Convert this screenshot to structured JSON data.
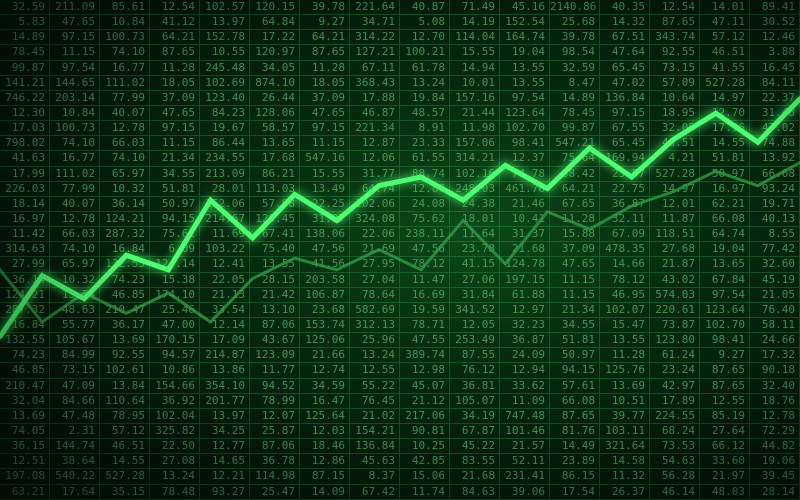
{
  "chart_data": {
    "type": "line",
    "title": "",
    "xlabel": "",
    "ylabel": "",
    "x": [
      0,
      1,
      2,
      3,
      4,
      5,
      6,
      7,
      8,
      9,
      10,
      11,
      12,
      13,
      14,
      15,
      16,
      17,
      18,
      19
    ],
    "xlim": [
      0,
      19
    ],
    "ylim": [
      0,
      100
    ],
    "grid": true,
    "legend": "none",
    "series": [
      {
        "values": [
          15,
          36,
          28,
          43,
          38,
          62,
          49,
          64,
          55,
          67,
          70,
          62,
          74,
          66,
          80,
          70,
          83,
          92,
          82,
          97
        ],
        "color": "#4dff70",
        "glow": true
      },
      {
        "values": [
          38,
          20,
          30,
          23,
          30,
          20,
          35,
          42,
          38,
          45,
          38,
          55,
          40,
          58,
          52,
          60,
          65,
          72,
          67,
          75
        ],
        "color": "#2f9e46",
        "glow": false
      }
    ]
  },
  "table": {
    "rows": [
      [
        "32.59",
        "211.09",
        "85.61",
        "12.54",
        "102.57",
        "120.15",
        "39.78",
        "221.64",
        "40.87",
        "71.49",
        "45.16",
        "2140.86",
        "40.35",
        "12.54",
        "14.01",
        "89.41"
      ],
      [
        "5.83",
        "47.65",
        "10.84",
        "41.12",
        "13.97",
        "64.84",
        "9.27",
        "34.71",
        "5.08",
        "14.19",
        "152.54",
        "25.68",
        "14.32",
        "87.65",
        "47.11",
        "30.52"
      ],
      [
        "14.89",
        "97.15",
        "100.73",
        "64.21",
        "152.78",
        "17.22",
        "64.21",
        "314.22",
        "12.70",
        "114.04",
        "164.74",
        "39.78",
        "67.51",
        "343.74",
        "57.12",
        "12.46"
      ],
      [
        "78.45",
        "11.15",
        "74.10",
        "87.65",
        "10.55",
        "120.97",
        "87.65",
        "127.21",
        "100.21",
        "15.55",
        "19.04",
        "98.54",
        "47.64",
        "92.55",
        "46.51",
        "3.88"
      ],
      [
        "99.87",
        "97.54",
        "16.77",
        "11.28",
        "245.48",
        "34.05",
        "11.28",
        "67.11",
        "61.78",
        "14.94",
        "13.55",
        "32.59",
        "65.45",
        "73.15",
        "41.55",
        "16.45"
      ],
      [
        "141.21",
        "144.65",
        "111.02",
        "18.05",
        "102.69",
        "874.10",
        "18.05",
        "368.43",
        "13.24",
        "10.01",
        "13.55",
        "8.47",
        "47.02",
        "57.09",
        "527.28",
        "84.11"
      ],
      [
        "746.22",
        "203.14",
        "77.99",
        "37.09",
        "123.40",
        "26.44",
        "37.09",
        "17.88",
        "19.84",
        "157.16",
        "97.54",
        "14.89",
        "136.84",
        "10.64",
        "14.97",
        "22.37"
      ],
      [
        "12.30",
        "10.84",
        "40.07",
        "47.65",
        "84.23",
        "128.06",
        "47.65",
        "46.87",
        "48.57",
        "21.44",
        "123.64",
        "78.45",
        "97.15",
        "18.95",
        "12.70",
        "31.48"
      ],
      [
        "17.03",
        "100.73",
        "12.78",
        "97.15",
        "19.67",
        "58.57",
        "97.15",
        "221.34",
        "8.91",
        "11.98",
        "102.70",
        "99.87",
        "67.55",
        "32.05",
        "17.96",
        "47.02"
      ],
      [
        "798.02",
        "74.10",
        "66.03",
        "11.15",
        "86.44",
        "13.65",
        "11.15",
        "12.87",
        "23.33",
        "157.06",
        "98.41",
        "547.21",
        "65.45",
        "46.51",
        "14.55",
        "74.88"
      ],
      [
        "41.63",
        "16.77",
        "74.10",
        "21.34",
        "234.55",
        "17.68",
        "547.16",
        "12.06",
        "61.55",
        "314.21",
        "12.37",
        "75.64",
        "169.94",
        "4.21",
        "51.81",
        "13.92"
      ],
      [
        "17.99",
        "111.02",
        "65.97",
        "34.55",
        "213.09",
        "86.21",
        "15.55",
        "31.77",
        "88.74",
        "102.16",
        "74.78",
        "58.42",
        "23.57",
        "527.28",
        "50.97",
        "66.08"
      ],
      [
        "226.03",
        "77.99",
        "10.32",
        "51.81",
        "28.01",
        "113.03",
        "13.49",
        "64.74",
        "12.87",
        "248.03",
        "461.76",
        "64.21",
        "22.75",
        "14.97",
        "16.97",
        "93.24"
      ],
      [
        "18.14",
        "40.07",
        "36.14",
        "50.97",
        "152.06",
        "57.98",
        "22.25",
        "102.06",
        "24.08",
        "24.38",
        "21.46",
        "67.65",
        "36.87",
        "12.01",
        "62.21",
        "19.71"
      ],
      [
        "16.97",
        "12.78",
        "124.21",
        "94.15",
        "214.67",
        "120.45",
        "31.97",
        "324.08",
        "75.62",
        "18.01",
        "10.41",
        "11.28",
        "32.11",
        "11.87",
        "66.08",
        "40.13"
      ],
      [
        "11.42",
        "66.03",
        "287.32",
        "75.61",
        "11.69",
        "67.41",
        "138.06",
        "22.06",
        "238.11",
        "11.64",
        "31.37",
        "15.88",
        "67.09",
        "118.51",
        "64.74",
        "8.55"
      ],
      [
        "314.63",
        "74.10",
        "16.84",
        "6.09",
        "103.22",
        "75.40",
        "47.56",
        "21.69",
        "47.56",
        "23.78",
        "21.68",
        "37.09",
        "478.35",
        "27.68",
        "19.04",
        "77.42"
      ],
      [
        "27.99",
        "65.97",
        "132.55",
        "124.14",
        "12.41",
        "13.55",
        "41.56",
        "27.95",
        "78.12",
        "41.15",
        "124.78",
        "47.65",
        "14.66",
        "21.87",
        "13.65",
        "32.60"
      ],
      [
        "36.14",
        "10.32",
        "74.23",
        "15.38",
        "22.05",
        "28.15",
        "203.58",
        "27.04",
        "11.47",
        "27.06",
        "197.15",
        "11.15",
        "78.12",
        "43.02",
        "67.84",
        "45.19"
      ],
      [
        "124.21",
        "13.74",
        "46.85",
        "174.10",
        "21.13",
        "21.42",
        "106.87",
        "78.64",
        "16.69",
        "31.84",
        "61.88",
        "11.15",
        "46.95",
        "574.03",
        "97.54",
        "21.05"
      ],
      [
        "287.32",
        "48.63",
        "210.47",
        "25.46",
        "33.54",
        "13.10",
        "23.68",
        "582.69",
        "19.59",
        "341.52",
        "12.97",
        "21.34",
        "102.07",
        "220.61",
        "123.64",
        "76.40"
      ],
      [
        "16.84",
        "55.77",
        "36.17",
        "47.00",
        "12.14",
        "87.06",
        "153.74",
        "312.13",
        "78.71",
        "12.05",
        "32.23",
        "34.55",
        "15.47",
        "73.87",
        "102.70",
        "58.11"
      ],
      [
        "132.55",
        "105.67",
        "13.69",
        "170.15",
        "17.09",
        "43.67",
        "125.06",
        "25.96",
        "47.55",
        "253.49",
        "36.87",
        "51.81",
        "13.55",
        "123.80",
        "98.41",
        "24.66"
      ],
      [
        "74.23",
        "84.99",
        "92.55",
        "94.57",
        "214.87",
        "123.09",
        "21.66",
        "13.24",
        "389.74",
        "87.55",
        "24.09",
        "50.97",
        "11.28",
        "61.24",
        "9.27",
        "17.32"
      ],
      [
        "46.85",
        "73.15",
        "102.61",
        "10.86",
        "13.86",
        "11.77",
        "12.74",
        "12.55",
        "12.98",
        "76.12",
        "12.94",
        "94.15",
        "125.76",
        "23.24",
        "87.65",
        "90.18"
      ],
      [
        "210.47",
        "47.09",
        "13.84",
        "154.66",
        "354.10",
        "94.52",
        "34.59",
        "55.22",
        "45.07",
        "36.81",
        "33.62",
        "57.61",
        "13.69",
        "42.97",
        "87.65",
        "32.40"
      ],
      [
        "32.04",
        "84.66",
        "110.64",
        "36.92",
        "201.77",
        "78.99",
        "16.47",
        "76.45",
        "21.12",
        "105.07",
        "11.09",
        "66.08",
        "10.51",
        "17.89",
        "12.55",
        "18.76"
      ],
      [
        "13.69",
        "47.48",
        "78.95",
        "102.04",
        "13.97",
        "12.07",
        "125.64",
        "21.02",
        "217.06",
        "34.19",
        "747.48",
        "87.65",
        "39.77",
        "224.55",
        "85.19",
        "12.78"
      ],
      [
        "74.05",
        "2.31",
        "57.12",
        "325.82",
        "34.25",
        "25.87",
        "12.03",
        "154.21",
        "90.81",
        "67.87",
        "101.46",
        "81.76",
        "103.11",
        "68.24",
        "27.64",
        "72.29"
      ],
      [
        "36.15",
        "144.74",
        "46.51",
        "22.50",
        "12.77",
        "87.06",
        "18.46",
        "136.84",
        "10.25",
        "45.22",
        "21.57",
        "14.49",
        "321.64",
        "73.53",
        "66.12",
        "44.82"
      ],
      [
        "12.51",
        "38.64",
        "14.55",
        "27.08",
        "14.65",
        "36.78",
        "12.86",
        "45.63",
        "42.85",
        "83.55",
        "52.11",
        "23.89",
        "14.58",
        "54.63",
        "33.60",
        "19.06"
      ],
      [
        "197.08",
        "540.22",
        "527.28",
        "13.24",
        "12.21",
        "114.98",
        "87.15",
        "8.37",
        "15.06",
        "21.68",
        "231.41",
        "86.15",
        "11.32",
        "56.28",
        "21.97",
        "39.45"
      ],
      [
        "63.21",
        "17.64",
        "35.15",
        "78.48",
        "93.27",
        "25.47",
        "14.09",
        "67.42",
        "11.74",
        "84.63",
        "39.06",
        "17.54",
        "26.37",
        "46.14",
        "48.03",
        "28.14"
      ]
    ]
  }
}
